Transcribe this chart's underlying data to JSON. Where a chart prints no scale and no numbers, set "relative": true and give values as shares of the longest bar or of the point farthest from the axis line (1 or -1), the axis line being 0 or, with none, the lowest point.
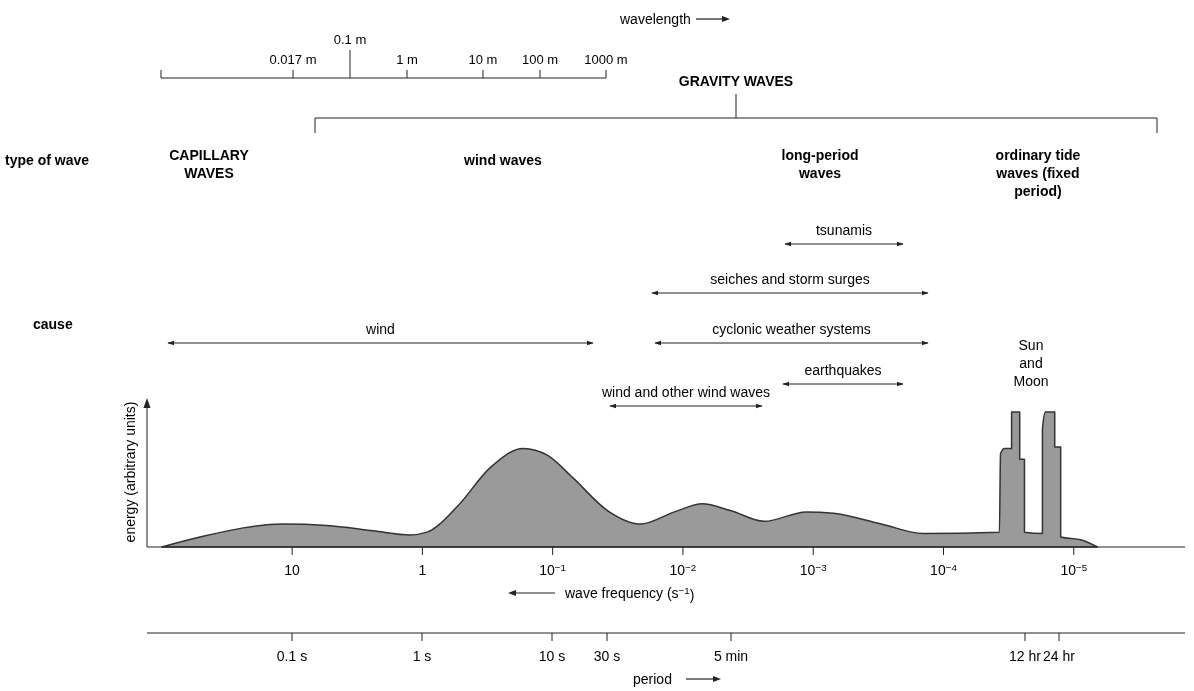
{
  "chart_data": {
    "type": "area",
    "relative": true,
    "log": "x",
    "xlim": [
      130,
      1.4e-06
    ],
    "xticks": [
      10,
      1,
      {
        "value": 0.1,
        "label": "10$^{−1}$"
      },
      {
        "value": 0.01,
        "label": "10$^{−2}$"
      },
      {
        "value": 0.001,
        "label": "10$^{−3}$"
      },
      {
        "value": 0.0001,
        "label": "10$^{−4}$"
      },
      {
        "value": 1e-05,
        "label": "10$^{−5}$"
      }
    ],
    "xlabel": "wave frequency (s$^{−1}$)",
    "ylabel": "energy (arbitrary units)",
    "series": [
      {
        "color": "#9a9a9a",
        "x": [
          100,
          51,
          11.7,
          5.4,
          2.39,
          1.24,
          0.92,
          0.54,
          0.3,
          0.168,
          0.11,
          0.0695,
          0.038,
          0.0212,
          0.0116,
          0.0071,
          0.00432,
          0.00237,
          0.00113,
          0.0007,
          0.0003,
          0.000143,
          3.72e-05,
          3.65e-05,
          3.4e-05,
          3e-05,
          3e-05,
          2.6e-05,
          2.6e-05,
          2.39e-05,
          2.39e-05,
          1.74e-05,
          1.74e-05,
          1.65e-05,
          1.4e-05,
          1.4e-05,
          1.26e-05,
          1.26e-05,
          8.7e-06,
          6.6e-06
        ],
        "values": [
          0,
          0.074,
          0.17,
          0.16,
          0.12,
          0.089,
          0.11,
          0.3,
          0.59,
          0.73,
          0.68,
          0.51,
          0.27,
          0.17,
          0.26,
          0.32,
          0.27,
          0.19,
          0.26,
          0.25,
          0.17,
          0.1,
          0.11,
          0.69,
          0.73,
          0.73,
          1,
          1,
          0.65,
          0.65,
          0.11,
          0.1,
          0.87,
          1,
          1,
          0.74,
          0.74,
          0.074,
          0.052,
          0
        ]
      }
    ],
    "annotations": [
      "type of wave",
      "CAPILLARY WAVES",
      "wind waves",
      "long-period waves",
      "ordinary tide waves (fixed period)",
      "cause",
      "Sun and Moon",
      "wavelength",
      "0.017 m",
      "0.1 m",
      "1 m",
      "10 m",
      "100 m",
      "1000 m",
      "period",
      "0.1 s",
      "1 s",
      "10 s",
      "30 s",
      "5 min",
      "12 hr",
      "24 hr",
      "GRAVITY WAVES",
      "tsunamis",
      "seiches and storm surges",
      "wind",
      "cyclonic weather systems",
      "earthquakes",
      "wind and other wind waves"
    ]
  }
}
